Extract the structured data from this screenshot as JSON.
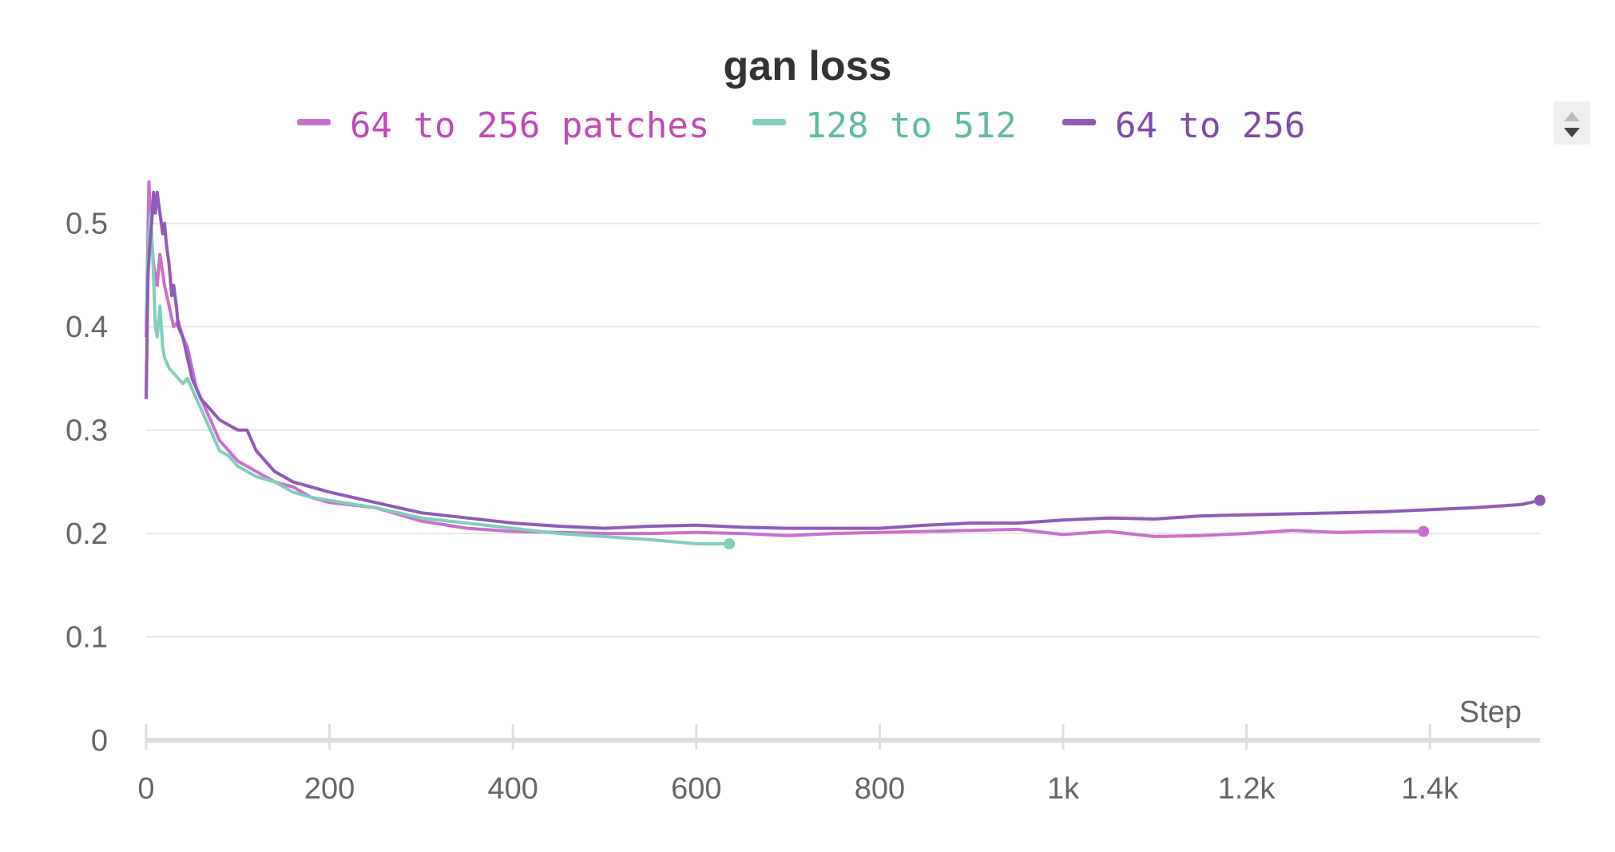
{
  "chart_data": {
    "type": "line",
    "title": "gan loss",
    "xlabel": "Step",
    "ylabel": "",
    "xlim": [
      0,
      1520
    ],
    "ylim": [
      0,
      0.55
    ],
    "x_ticks": [
      0,
      200,
      400,
      600,
      800,
      1000,
      1200,
      1400
    ],
    "x_tick_labels": [
      "0",
      "200",
      "400",
      "600",
      "800",
      "1k",
      "1.2k",
      "1.4k"
    ],
    "y_ticks": [
      0,
      0.1,
      0.2,
      0.3,
      0.4,
      0.5
    ],
    "y_tick_labels": [
      "0",
      "0.1",
      "0.2",
      "0.3",
      "0.4",
      "0.5"
    ],
    "grid": true,
    "legend_position": "top",
    "series": [
      {
        "name": "64 to 256 patches",
        "color": "#c96fce",
        "x": [
          0,
          3,
          5,
          8,
          12,
          15,
          20,
          25,
          30,
          35,
          40,
          45,
          50,
          55,
          60,
          70,
          80,
          90,
          100,
          110,
          120,
          140,
          160,
          180,
          200,
          250,
          300,
          350,
          400,
          450,
          500,
          550,
          600,
          650,
          700,
          750,
          800,
          850,
          900,
          950,
          1000,
          1050,
          1100,
          1150,
          1200,
          1250,
          1300,
          1350,
          1393
        ],
        "y": [
          0.39,
          0.54,
          0.5,
          0.46,
          0.44,
          0.47,
          0.44,
          0.42,
          0.4,
          0.405,
          0.39,
          0.38,
          0.36,
          0.34,
          0.33,
          0.31,
          0.29,
          0.28,
          0.27,
          0.265,
          0.26,
          0.25,
          0.245,
          0.235,
          0.23,
          0.225,
          0.212,
          0.205,
          0.202,
          0.201,
          0.2,
          0.2,
          0.201,
          0.2,
          0.198,
          0.2,
          0.201,
          0.202,
          0.203,
          0.204,
          0.199,
          0.202,
          0.197,
          0.198,
          0.2,
          0.203,
          0.201,
          0.202,
          0.202
        ]
      },
      {
        "name": "128 to 512",
        "color": "#7fcfbd",
        "x": [
          0,
          3,
          5,
          8,
          10,
          12,
          15,
          18,
          20,
          25,
          30,
          35,
          40,
          45,
          50,
          55,
          60,
          70,
          80,
          90,
          100,
          110,
          120,
          140,
          160,
          180,
          200,
          250,
          300,
          350,
          400,
          450,
          500,
          550,
          600,
          636
        ],
        "y": [
          0.41,
          0.49,
          0.51,
          0.45,
          0.4,
          0.39,
          0.42,
          0.38,
          0.37,
          0.36,
          0.355,
          0.35,
          0.345,
          0.35,
          0.34,
          0.33,
          0.32,
          0.3,
          0.28,
          0.275,
          0.265,
          0.26,
          0.255,
          0.25,
          0.24,
          0.235,
          0.232,
          0.225,
          0.215,
          0.21,
          0.205,
          0.2,
          0.197,
          0.194,
          0.19,
          0.19
        ]
      },
      {
        "name": "64 to 256",
        "color": "#8f5ab8",
        "x": [
          0,
          2,
          4,
          6,
          8,
          10,
          12,
          15,
          18,
          20,
          22,
          25,
          28,
          30,
          33,
          35,
          40,
          45,
          50,
          55,
          60,
          70,
          80,
          90,
          100,
          110,
          120,
          140,
          160,
          180,
          200,
          250,
          300,
          350,
          400,
          450,
          500,
          550,
          600,
          650,
          700,
          750,
          800,
          850,
          900,
          950,
          1000,
          1050,
          1100,
          1150,
          1200,
          1250,
          1300,
          1350,
          1400,
          1450,
          1500,
          1520
        ],
        "y": [
          0.33,
          0.45,
          0.48,
          0.5,
          0.53,
          0.51,
          0.53,
          0.51,
          0.49,
          0.5,
          0.48,
          0.46,
          0.43,
          0.44,
          0.42,
          0.4,
          0.39,
          0.37,
          0.35,
          0.34,
          0.33,
          0.32,
          0.31,
          0.305,
          0.3,
          0.3,
          0.28,
          0.26,
          0.25,
          0.245,
          0.24,
          0.23,
          0.22,
          0.215,
          0.21,
          0.207,
          0.205,
          0.207,
          0.208,
          0.206,
          0.205,
          0.205,
          0.205,
          0.208,
          0.21,
          0.21,
          0.213,
          0.215,
          0.214,
          0.217,
          0.218,
          0.219,
          0.22,
          0.221,
          0.223,
          0.225,
          0.228,
          0.232
        ]
      }
    ]
  },
  "sort_control": {
    "up_icon": "triangle-up-icon",
    "down_icon": "triangle-down-icon"
  }
}
